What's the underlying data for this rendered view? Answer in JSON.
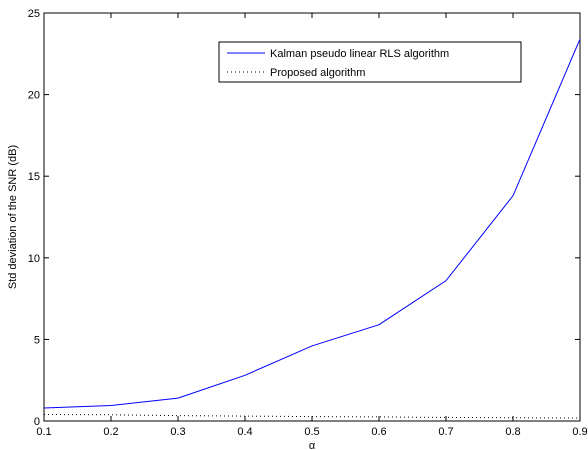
{
  "chart_data": {
    "type": "line",
    "title": "",
    "xlabel": "α",
    "ylabel": "Std deviation of the SNR (dB)",
    "xlim": [
      0.1,
      0.9
    ],
    "ylim": [
      0,
      25
    ],
    "xticks": [
      "0.1",
      "0.2",
      "0.3",
      "0.4",
      "0.5",
      "0.6",
      "0.7",
      "0.8",
      "0.9"
    ],
    "yticks": [
      "0",
      "5",
      "10",
      "15",
      "20",
      "25"
    ],
    "grid": false,
    "legend_position": "top-right",
    "x": [
      0.1,
      0.2,
      0.3,
      0.4,
      0.5,
      0.6,
      0.7,
      0.8,
      0.9
    ],
    "series": [
      {
        "name": "Kalman pseudo linear RLS algorithm",
        "values": [
          0.8,
          0.95,
          1.4,
          2.8,
          4.6,
          5.9,
          8.6,
          13.8,
          23.4
        ],
        "color": "#0000ff",
        "style": "solid"
      },
      {
        "name": "Proposed algorithm",
        "values": [
          0.4,
          0.38,
          0.33,
          0.3,
          0.27,
          0.25,
          0.22,
          0.2,
          0.18
        ],
        "color": "#000000",
        "style": "dotted"
      }
    ]
  }
}
